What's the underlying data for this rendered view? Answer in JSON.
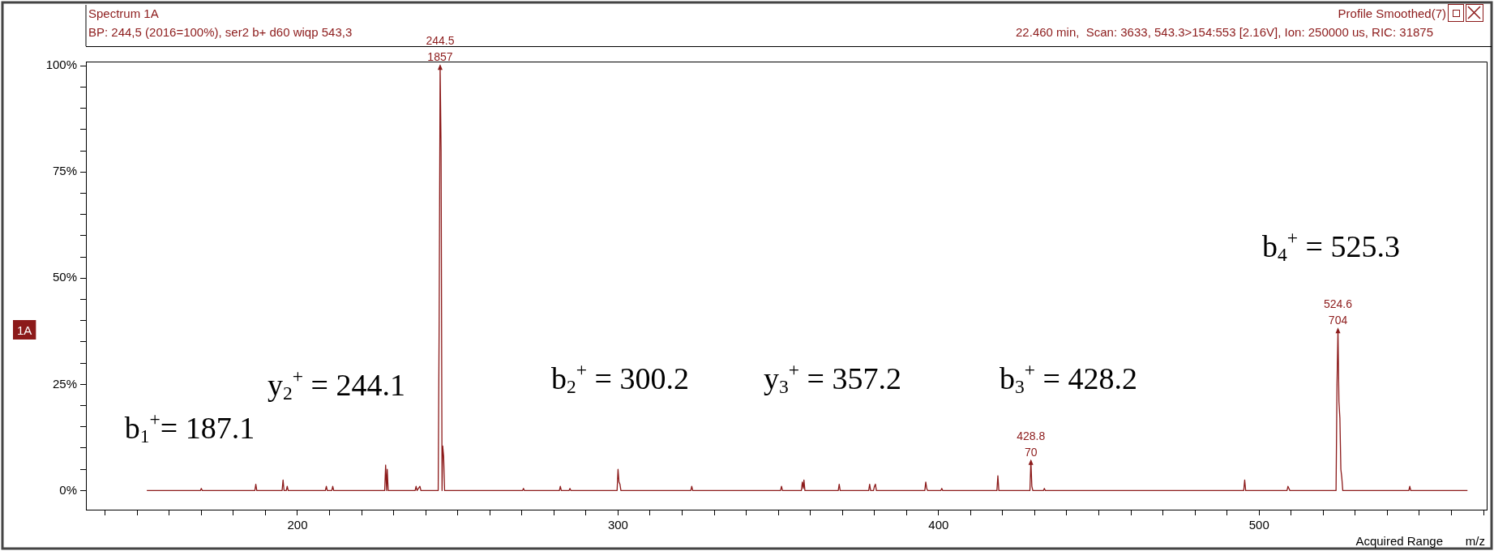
{
  "chart_data": {
    "type": "line",
    "title": "Spectrum 1A",
    "subtitle": "BP: 244,5 (2016=100%), ser2 b+ d60 wiqp 543,3",
    "xlabel": "m/z",
    "annotations": [
      "Profile Smoothed(7)",
      "22.460 min,  Scan: 3633, 543.3>154:553 [2.16V], Ion: 250000 us, RIC: 31875",
      "1A",
      "Acquired Range",
      "b$_{1}$$^{+}$= 187.1",
      "y$_{2}$$^{+}$ = 244.1",
      "b$_{2}$$^{+}$ = 300.2",
      "y$_{3}$$^{+}$ = 357.2",
      "b$_{3}$$^{+}$ = 428.2",
      "b$_{4}$$^{+}$ = 525.3",
      {
        "text": "244.5\n1857",
        "x": 244.5,
        "y": 100
      },
      {
        "text": "428.8\n70",
        "x": 428.8,
        "y": 7
      },
      {
        "text": "524.6\n704",
        "x": 524.6,
        "y": 38
      }
    ],
    "xlim": [
      134,
      571
    ],
    "ylim": [
      -4.5,
      101
    ],
    "xticks": [
      {
        "value": 140,
        "label": null
      },
      {
        "value": 150,
        "label": null
      },
      {
        "value": 160,
        "label": null
      },
      {
        "value": 170,
        "label": null
      },
      {
        "value": 180,
        "label": null
      },
      {
        "value": 190,
        "label": null
      },
      200,
      {
        "value": 210,
        "label": null
      },
      {
        "value": 220,
        "label": null
      },
      {
        "value": 230,
        "label": null
      },
      {
        "value": 240,
        "label": null
      },
      {
        "value": 250,
        "label": null
      },
      {
        "value": 260,
        "label": null
      },
      {
        "value": 270,
        "label": null
      },
      {
        "value": 280,
        "label": null
      },
      {
        "value": 290,
        "label": null
      },
      300,
      {
        "value": 310,
        "label": null
      },
      {
        "value": 320,
        "label": null
      },
      {
        "value": 330,
        "label": null
      },
      {
        "value": 340,
        "label": null
      },
      {
        "value": 350,
        "label": null
      },
      {
        "value": 360,
        "label": null
      },
      {
        "value": 370,
        "label": null
      },
      {
        "value": 380,
        "label": null
      },
      {
        "value": 390,
        "label": null
      },
      400,
      {
        "value": 410,
        "label": null
      },
      {
        "value": 420,
        "label": null
      },
      {
        "value": 430,
        "label": null
      },
      {
        "value": 440,
        "label": null
      },
      {
        "value": 450,
        "label": null
      },
      {
        "value": 460,
        "label": null
      },
      {
        "value": 470,
        "label": null
      },
      {
        "value": 480,
        "label": null
      },
      {
        "value": 490,
        "label": null
      },
      500,
      {
        "value": 510,
        "label": null
      },
      {
        "value": 520,
        "label": null
      },
      {
        "value": 530,
        "label": null
      },
      {
        "value": 540,
        "label": null
      },
      {
        "value": 550,
        "label": null
      },
      {
        "value": 560,
        "label": null
      },
      {
        "value": 570,
        "label": null
      }
    ],
    "yticks": [
      {
        "value": 0,
        "label": "0%"
      },
      {
        "value": 5,
        "label": null
      },
      {
        "value": 10,
        "label": null
      },
      {
        "value": 15,
        "label": null
      },
      {
        "value": 20,
        "label": null
      },
      {
        "value": 25,
        "label": "25%"
      },
      {
        "value": 30,
        "label": null
      },
      {
        "value": 35,
        "label": null
      },
      {
        "value": 40,
        "label": null
      },
      {
        "value": 45,
        "label": null
      },
      {
        "value": 50,
        "label": "50%"
      },
      {
        "value": 55,
        "label": null
      },
      {
        "value": 60,
        "label": null
      },
      {
        "value": 65,
        "label": null
      },
      {
        "value": 70,
        "label": null
      },
      {
        "value": 75,
        "label": "75%"
      },
      {
        "value": 80,
        "label": null
      },
      {
        "value": 85,
        "label": null
      },
      {
        "value": 90,
        "label": null
      },
      {
        "value": 95,
        "label": null
      },
      {
        "value": 100,
        "label": "100%"
      }
    ],
    "marker": "none",
    "series": [
      {
        "color": "#8c1a1a",
        "x": [
          153,
          169.7,
          170,
          170.3,
          186.7,
          187,
          187.3,
          195.2,
          195.5,
          195.8,
          196.5,
          196.8,
          197.1,
          208.7,
          209,
          209.3,
          210.7,
          211,
          211.3,
          227.2,
          227.5,
          227.8,
          228,
          228.3,
          236.7,
          237,
          237.3,
          238.2,
          238.5,
          243.9,
          244.2,
          244.5,
          244.8,
          245.1,
          245.3,
          245.6,
          245.9,
          270.2,
          270.5,
          270.8,
          281.7,
          282,
          282.3,
          284.7,
          285,
          285.3,
          299.7,
          300,
          300.3,
          300.6,
          300.9,
          322.7,
          323,
          323.3,
          350.7,
          351,
          351.3,
          357.2,
          357.5,
          357.8,
          358,
          358.3,
          368.7,
          369,
          369.3,
          378.2,
          378.5,
          378.8,
          379.7,
          380,
          380.3,
          380.6,
          395.7,
          396,
          396.3,
          396.6,
          400.7,
          401,
          401.3,
          418.2,
          418.5,
          418.8,
          428.5,
          428.8,
          429.1,
          429.4,
          432.7,
          433,
          433.3,
          495.2,
          495.5,
          495.8,
          508.7,
          509,
          509.3,
          509.6,
          524.0,
          524.3,
          524.6,
          524.9,
          525.2,
          525.5,
          525.8,
          526.1,
          546.7,
          547,
          547.3,
          565
        ],
        "values": [
          0,
          0,
          0.5,
          0,
          0,
          1.5,
          0,
          0,
          2.5,
          0,
          0,
          1,
          0,
          0,
          1,
          0,
          0,
          1,
          0,
          0,
          6,
          0,
          5,
          0,
          0,
          1,
          0,
          1,
          0,
          0,
          40,
          100,
          80,
          0,
          10.5,
          8,
          0,
          0,
          0.5,
          0,
          0,
          1,
          0,
          0,
          0.5,
          0,
          0,
          5,
          2,
          1.5,
          0,
          0,
          1,
          0,
          0,
          1,
          0,
          0,
          2,
          0.5,
          2.5,
          0,
          0,
          1.5,
          0,
          0,
          1.5,
          0,
          0,
          1,
          1.5,
          0,
          0,
          2,
          0.5,
          0,
          0,
          0.5,
          0,
          0,
          3.5,
          0,
          0,
          7,
          1,
          0,
          0,
          0.5,
          0,
          0,
          2.5,
          0,
          0,
          1,
          0.5,
          0,
          0,
          25,
          38,
          21,
          17,
          5,
          3,
          0,
          0,
          1,
          0,
          0
        ]
      }
    ]
  }
}
